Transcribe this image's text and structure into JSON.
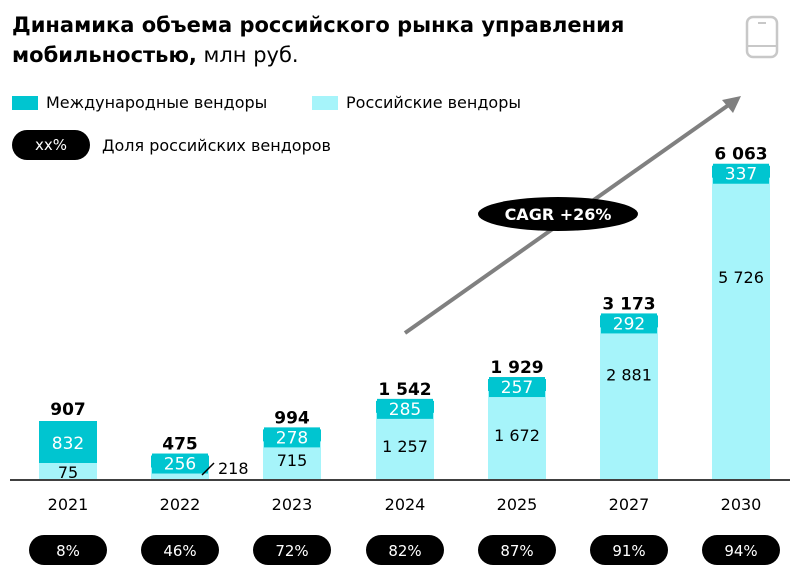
{
  "title": {
    "main": "Динамика объема российского рынка управления мобильностью,",
    "unit": " млн руб."
  },
  "legend": {
    "international": "Международные вендоры",
    "russian": "Российские вендоры",
    "share_pill": "xx%",
    "share_label": "Доля российских вендоров"
  },
  "colors": {
    "international": "#00C5D0",
    "russian": "#A6F4FA",
    "axis": "#000000",
    "arrow": "#808080",
    "pill": "#000000"
  },
  "icons": {
    "top_right": "smartphone-icon"
  },
  "chart_data": {
    "type": "bar",
    "stacked": true,
    "title": "Динамика объема российского рынка управления мобильностью, млн руб.",
    "categories": [
      "2021",
      "2022",
      "2023",
      "2024",
      "2025",
      "2027",
      "2030"
    ],
    "series": [
      {
        "name": "Российские вендоры",
        "values": [
          75,
          218,
          715,
          1257,
          1672,
          2881,
          5726
        ]
      },
      {
        "name": "Международные вендоры",
        "values": [
          832,
          256,
          278,
          285,
          257,
          292,
          337
        ]
      }
    ],
    "totals": [
      907,
      475,
      994,
      1542,
      1929,
      3173,
      6063
    ],
    "total_labels": [
      "907",
      "475",
      "994",
      "1 542",
      "1 929",
      "3 173",
      "6 063"
    ],
    "russian_labels": [
      "75",
      "218",
      "715",
      "1 257",
      "1 672",
      "2 881",
      "5 726"
    ],
    "international_labels": [
      "832",
      "256",
      "278",
      "285",
      "257",
      "292",
      "337"
    ],
    "share_labels": [
      "8%",
      "46%",
      "72%",
      "82%",
      "87%",
      "91%",
      "94%"
    ],
    "cagr_label": "CAGR +26%",
    "xlabel": "",
    "ylabel": "",
    "ylim": [
      0,
      6063
    ]
  }
}
